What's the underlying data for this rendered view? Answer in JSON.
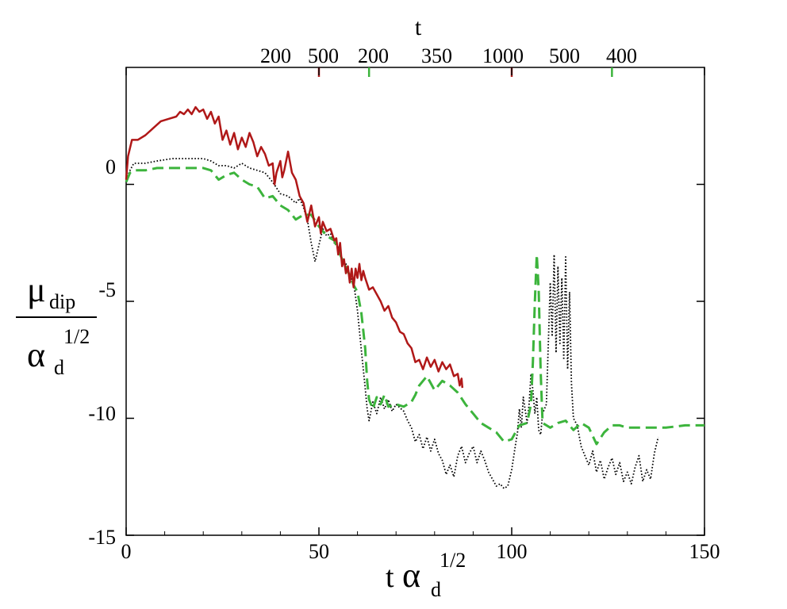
{
  "chart_data": {
    "type": "line",
    "title": "",
    "xlabel": {
      "main": "t",
      "greek": "α",
      "sub": "d",
      "sup": "1/2"
    },
    "ylabel": {
      "numerator": {
        "greek": "μ",
        "sub": "dip"
      },
      "denominator": {
        "greek": "α",
        "sub": "d",
        "sup": "1/2"
      }
    },
    "top_axis": {
      "label": "t",
      "ticks": [
        {
          "label": "200",
          "x": null,
          "color": "#000000",
          "tick": false
        },
        {
          "label": "500",
          "x": 50,
          "color": "#b22222",
          "tick": true
        },
        {
          "label": "200",
          "x": 63,
          "color": "#3cb43c",
          "tick": true
        },
        {
          "label": "350",
          "x": null,
          "color": "#000000",
          "tick": false
        },
        {
          "label": "1000",
          "x": 100,
          "color": "#b22222",
          "tick": true
        },
        {
          "label": "500",
          "x": null,
          "color": "#000000",
          "tick": false
        },
        {
          "label": "400",
          "x": 126,
          "color": "#3cb43c",
          "tick": true
        }
      ]
    },
    "xlim": [
      0,
      150
    ],
    "ylim": [
      -15,
      5
    ],
    "xticks": [
      0,
      50,
      100,
      150
    ],
    "yticks": [
      0,
      -5,
      -10,
      -15
    ],
    "grid": false,
    "series": [
      {
        "name": "red solid",
        "style": "solid",
        "color": "#b01818",
        "points": [
          [
            0,
            0.2
          ],
          [
            0.5,
            1.2
          ],
          [
            1.5,
            1.9
          ],
          [
            3,
            1.9
          ],
          [
            5,
            2.1
          ],
          [
            7,
            2.4
          ],
          [
            9,
            2.7
          ],
          [
            11,
            2.8
          ],
          [
            13,
            2.9
          ],
          [
            14,
            3.1
          ],
          [
            15,
            3.0
          ],
          [
            16,
            3.2
          ],
          [
            17,
            3.0
          ],
          [
            18,
            3.3
          ],
          [
            19,
            3.1
          ],
          [
            20,
            3.2
          ],
          [
            21,
            2.8
          ],
          [
            22,
            3.1
          ],
          [
            23,
            2.6
          ],
          [
            24,
            2.9
          ],
          [
            25,
            1.9
          ],
          [
            26,
            2.3
          ],
          [
            27,
            1.7
          ],
          [
            28,
            2.2
          ],
          [
            29,
            1.5
          ],
          [
            30,
            2.0
          ],
          [
            31,
            1.6
          ],
          [
            32,
            2.2
          ],
          [
            33,
            1.8
          ],
          [
            34,
            1.2
          ],
          [
            35,
            1.6
          ],
          [
            36,
            1.3
          ],
          [
            37,
            0.8
          ],
          [
            38,
            0.9
          ],
          [
            38.5,
            0.0
          ],
          [
            39,
            0.5
          ],
          [
            40,
            1.0
          ],
          [
            40.5,
            0.3
          ],
          [
            41,
            0.6
          ],
          [
            42,
            1.4
          ],
          [
            43,
            0.5
          ],
          [
            44,
            0.2
          ],
          [
            45,
            -0.5
          ],
          [
            46,
            -0.8
          ],
          [
            47,
            -1.6
          ],
          [
            48,
            -0.9
          ],
          [
            49,
            -1.8
          ],
          [
            50,
            -1.4
          ],
          [
            50.5,
            -2.1
          ],
          [
            51,
            -1.6
          ],
          [
            52,
            -2.0
          ],
          [
            53,
            -1.9
          ],
          [
            54,
            -2.4
          ],
          [
            54.5,
            -2.3
          ],
          [
            55,
            -3.0
          ],
          [
            55.5,
            -2.5
          ],
          [
            56,
            -3.5
          ],
          [
            56.5,
            -3.2
          ],
          [
            57,
            -3.8
          ],
          [
            57.5,
            -3.5
          ],
          [
            58,
            -4.2
          ],
          [
            58.5,
            -3.6
          ],
          [
            59,
            -4.4
          ],
          [
            59.5,
            -3.6
          ],
          [
            60,
            -4.0
          ],
          [
            60.5,
            -3.4
          ],
          [
            61,
            -4.1
          ],
          [
            61.5,
            -3.7
          ],
          [
            62,
            -4.0
          ],
          [
            63,
            -4.5
          ],
          [
            64,
            -4.4
          ],
          [
            65,
            -4.7
          ],
          [
            66,
            -5.0
          ],
          [
            67,
            -5.4
          ],
          [
            68,
            -5.2
          ],
          [
            69,
            -5.7
          ],
          [
            70,
            -5.9
          ],
          [
            71,
            -6.3
          ],
          [
            72,
            -6.4
          ],
          [
            73,
            -6.8
          ],
          [
            74,
            -7.0
          ],
          [
            75,
            -7.6
          ],
          [
            76,
            -7.5
          ],
          [
            77,
            -7.9
          ],
          [
            78,
            -7.4
          ],
          [
            79,
            -7.8
          ],
          [
            80,
            -7.5
          ],
          [
            81,
            -8.0
          ],
          [
            82,
            -7.6
          ],
          [
            83,
            -7.9
          ],
          [
            84,
            -7.7
          ],
          [
            85,
            -8.2
          ],
          [
            86,
            -8.1
          ],
          [
            86.5,
            -8.6
          ],
          [
            87,
            -8.3
          ],
          [
            87.2,
            -8.7
          ]
        ]
      },
      {
        "name": "green dashed",
        "style": "dashed",
        "color": "#3cb43c",
        "points": [
          [
            0,
            0.1
          ],
          [
            1,
            0.5
          ],
          [
            2,
            0.6
          ],
          [
            5,
            0.6
          ],
          [
            8,
            0.7
          ],
          [
            12,
            0.7
          ],
          [
            16,
            0.7
          ],
          [
            20,
            0.7
          ],
          [
            22,
            0.6
          ],
          [
            24,
            0.2
          ],
          [
            26,
            0.4
          ],
          [
            28,
            0.5
          ],
          [
            30,
            0.2
          ],
          [
            32,
            0.0
          ],
          [
            34,
            -0.1
          ],
          [
            36,
            -0.6
          ],
          [
            38,
            -0.5
          ],
          [
            40,
            -0.9
          ],
          [
            42,
            -1.1
          ],
          [
            44,
            -1.5
          ],
          [
            46,
            -1.3
          ],
          [
            48,
            -1.3
          ],
          [
            50,
            -1.8
          ],
          [
            52,
            -2.2
          ],
          [
            54,
            -2.4
          ],
          [
            56,
            -3.2
          ],
          [
            58,
            -3.9
          ],
          [
            59,
            -4.3
          ],
          [
            60,
            -4.6
          ],
          [
            61,
            -5.5
          ],
          [
            62,
            -7.0
          ],
          [
            62.5,
            -8.4
          ],
          [
            63,
            -9.2
          ],
          [
            64,
            -9.6
          ],
          [
            65,
            -9.1
          ],
          [
            66,
            -9.4
          ],
          [
            67,
            -9.0
          ],
          [
            68,
            -9.5
          ],
          [
            70,
            -9.4
          ],
          [
            72,
            -9.5
          ],
          [
            74,
            -9.3
          ],
          [
            75,
            -9.0
          ],
          [
            76,
            -8.6
          ],
          [
            78,
            -8.2
          ],
          [
            80,
            -8.8
          ],
          [
            82,
            -8.4
          ],
          [
            84,
            -8.6
          ],
          [
            86,
            -8.9
          ],
          [
            88,
            -9.4
          ],
          [
            90,
            -9.8
          ],
          [
            92,
            -10.2
          ],
          [
            94,
            -10.4
          ],
          [
            96,
            -10.6
          ],
          [
            98,
            -11.0
          ],
          [
            100,
            -10.9
          ],
          [
            102,
            -10.3
          ],
          [
            104,
            -10.2
          ],
          [
            105,
            -9.4
          ],
          [
            105.5,
            -7.6
          ],
          [
            106,
            -5.0
          ],
          [
            106.5,
            -3.0
          ],
          [
            107,
            -4.5
          ],
          [
            107.5,
            -8.0
          ],
          [
            108,
            -10.2
          ],
          [
            110,
            -10.4
          ],
          [
            112,
            -10.2
          ],
          [
            114,
            -10.1
          ],
          [
            116,
            -10.5
          ],
          [
            118,
            -10.2
          ],
          [
            120,
            -10.4
          ],
          [
            122,
            -11.1
          ],
          [
            124,
            -10.6
          ],
          [
            126,
            -10.3
          ],
          [
            128,
            -10.3
          ],
          [
            130,
            -10.4
          ],
          [
            135,
            -10.4
          ],
          [
            140,
            -10.4
          ],
          [
            145,
            -10.3
          ],
          [
            150,
            -10.3
          ]
        ]
      },
      {
        "name": "black dotted",
        "style": "dotted",
        "color": "#000000",
        "points": [
          [
            0,
            0.2
          ],
          [
            1,
            0.6
          ],
          [
            2,
            0.9
          ],
          [
            5,
            0.9
          ],
          [
            8,
            1.0
          ],
          [
            12,
            1.1
          ],
          [
            16,
            1.1
          ],
          [
            20,
            1.1
          ],
          [
            22,
            1.0
          ],
          [
            24,
            0.8
          ],
          [
            26,
            0.8
          ],
          [
            28,
            0.7
          ],
          [
            30,
            0.9
          ],
          [
            32,
            0.7
          ],
          [
            34,
            0.6
          ],
          [
            36,
            0.5
          ],
          [
            38,
            0.1
          ],
          [
            40,
            -0.4
          ],
          [
            42,
            -0.5
          ],
          [
            44,
            -0.8
          ],
          [
            45,
            -0.6
          ],
          [
            46,
            -1.0
          ],
          [
            47,
            -1.5
          ],
          [
            48,
            -2.5
          ],
          [
            49,
            -3.3
          ],
          [
            50,
            -2.6
          ],
          [
            51,
            -1.9
          ],
          [
            52,
            -2.2
          ],
          [
            53,
            -2.1
          ],
          [
            54,
            -2.5
          ],
          [
            55,
            -2.6
          ],
          [
            56,
            -3.2
          ],
          [
            57,
            -3.4
          ],
          [
            58,
            -3.9
          ],
          [
            59,
            -4.2
          ],
          [
            60,
            -5.4
          ],
          [
            61,
            -7.1
          ],
          [
            62,
            -8.7
          ],
          [
            62.5,
            -9.6
          ],
          [
            63,
            -10.1
          ],
          [
            64,
            -9.3
          ],
          [
            65,
            -9.8
          ],
          [
            66,
            -9.1
          ],
          [
            67,
            -9.6
          ],
          [
            68,
            -9.2
          ],
          [
            69,
            -9.7
          ],
          [
            70,
            -9.4
          ],
          [
            72,
            -9.7
          ],
          [
            73,
            -10.1
          ],
          [
            74,
            -10.4
          ],
          [
            75,
            -11.0
          ],
          [
            76,
            -10.7
          ],
          [
            77,
            -11.3
          ],
          [
            78,
            -10.8
          ],
          [
            79,
            -11.4
          ],
          [
            80,
            -10.9
          ],
          [
            81,
            -11.5
          ],
          [
            82,
            -11.8
          ],
          [
            83,
            -12.4
          ],
          [
            84,
            -12.0
          ],
          [
            85,
            -12.5
          ],
          [
            86,
            -11.6
          ],
          [
            87,
            -11.2
          ],
          [
            88,
            -11.9
          ],
          [
            89,
            -11.5
          ],
          [
            90,
            -11.2
          ],
          [
            91,
            -11.9
          ],
          [
            92,
            -11.4
          ],
          [
            93,
            -11.8
          ],
          [
            94,
            -12.3
          ],
          [
            95,
            -12.6
          ],
          [
            96,
            -12.9
          ],
          [
            97,
            -12.8
          ],
          [
            98,
            -13.0
          ],
          [
            99,
            -12.9
          ],
          [
            100,
            -12.2
          ],
          [
            101,
            -11.1
          ],
          [
            101.5,
            -10.6
          ],
          [
            102,
            -9.6
          ],
          [
            102.5,
            -10.4
          ],
          [
            103,
            -9.1
          ],
          [
            104,
            -10.2
          ],
          [
            104.5,
            -9.4
          ],
          [
            105,
            -8.1
          ],
          [
            105.5,
            -8.8
          ],
          [
            106,
            -9.8
          ],
          [
            106.5,
            -9.1
          ],
          [
            107,
            -10.5
          ],
          [
            107.5,
            -10.7
          ],
          [
            108,
            -9.8
          ],
          [
            109,
            -9.4
          ],
          [
            110,
            -4.2
          ],
          [
            110.5,
            -6.5
          ],
          [
            111,
            -3.0
          ],
          [
            111.5,
            -7.2
          ],
          [
            112,
            -3.5
          ],
          [
            112.5,
            -6.8
          ],
          [
            113,
            -4.0
          ],
          [
            113.5,
            -7.5
          ],
          [
            114,
            -3.1
          ],
          [
            114.5,
            -7.9
          ],
          [
            115,
            -4.6
          ],
          [
            115.5,
            -8.5
          ],
          [
            116,
            -10.0
          ],
          [
            117,
            -10.3
          ],
          [
            118,
            -11.2
          ],
          [
            119,
            -11.6
          ],
          [
            120,
            -12.0
          ],
          [
            121,
            -11.4
          ],
          [
            122,
            -12.3
          ],
          [
            123,
            -11.8
          ],
          [
            124,
            -12.6
          ],
          [
            125,
            -12.1
          ],
          [
            126,
            -11.7
          ],
          [
            127,
            -12.4
          ],
          [
            128,
            -11.9
          ],
          [
            129,
            -12.7
          ],
          [
            130,
            -12.3
          ],
          [
            131,
            -12.8
          ],
          [
            132,
            -12.1
          ],
          [
            133,
            -11.6
          ],
          [
            134,
            -12.7
          ],
          [
            135,
            -12.2
          ],
          [
            136,
            -12.6
          ],
          [
            137,
            -11.5
          ],
          [
            138,
            -10.8
          ]
        ]
      }
    ]
  }
}
